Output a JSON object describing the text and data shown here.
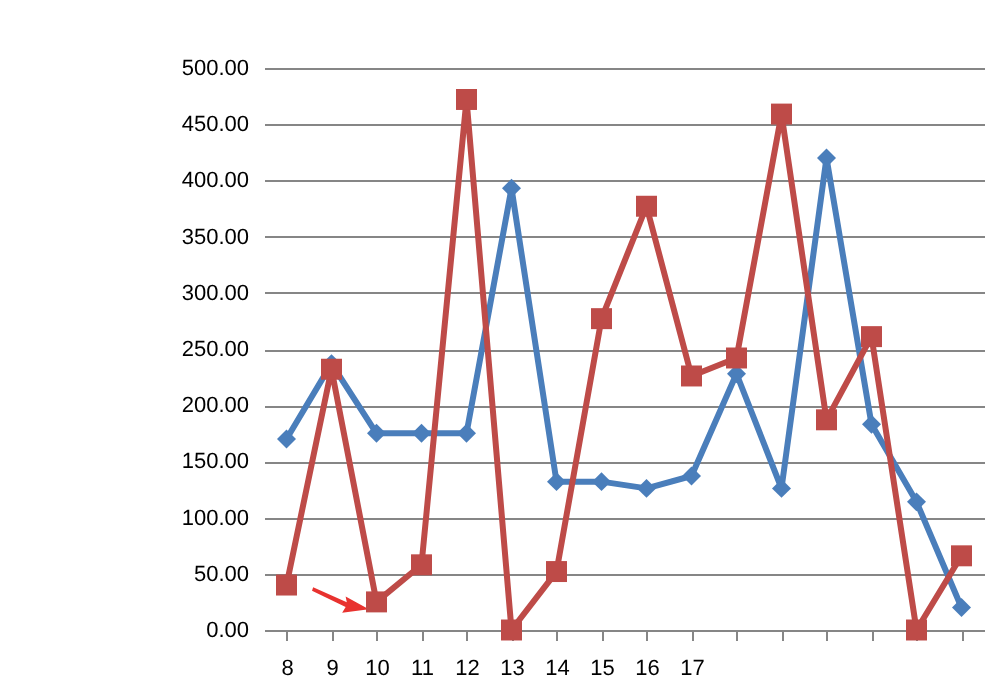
{
  "chart_data": {
    "type": "line",
    "categories": [
      "8",
      "9",
      "10",
      "11",
      "12",
      "13",
      "14",
      "15",
      "16",
      "17",
      null,
      null,
      null,
      null,
      null,
      null
    ],
    "series": [
      {
        "color": "#4a7ebb",
        "marker": "diamond",
        "values": [
          170,
          237,
          175,
          175,
          175,
          393,
          132,
          132,
          126,
          137,
          228,
          126,
          420,
          183,
          114,
          20
        ]
      },
      {
        "color": "#be4b48",
        "marker": "square",
        "values": [
          40,
          232,
          25,
          58,
          472,
          0,
          52,
          277,
          377,
          226,
          242,
          459,
          187,
          261,
          0,
          66
        ]
      }
    ],
    "ylim": [
      0,
      500
    ],
    "yticks": [
      {
        "value": 0,
        "label": "0.00"
      },
      {
        "value": 50,
        "label": "50.00"
      },
      {
        "value": 100,
        "label": "100.00"
      },
      {
        "value": 150,
        "label": "150.00"
      },
      {
        "value": 200,
        "label": "200.00"
      },
      {
        "value": 250,
        "label": "250.00"
      },
      {
        "value": 300,
        "label": "300.00"
      },
      {
        "value": 350,
        "label": "350.00"
      },
      {
        "value": 400,
        "label": "400.00"
      },
      {
        "value": 450,
        "label": "450.00"
      },
      {
        "value": 500,
        "label": "500.00"
      }
    ],
    "grid": "y",
    "line_style": "solid"
  }
}
